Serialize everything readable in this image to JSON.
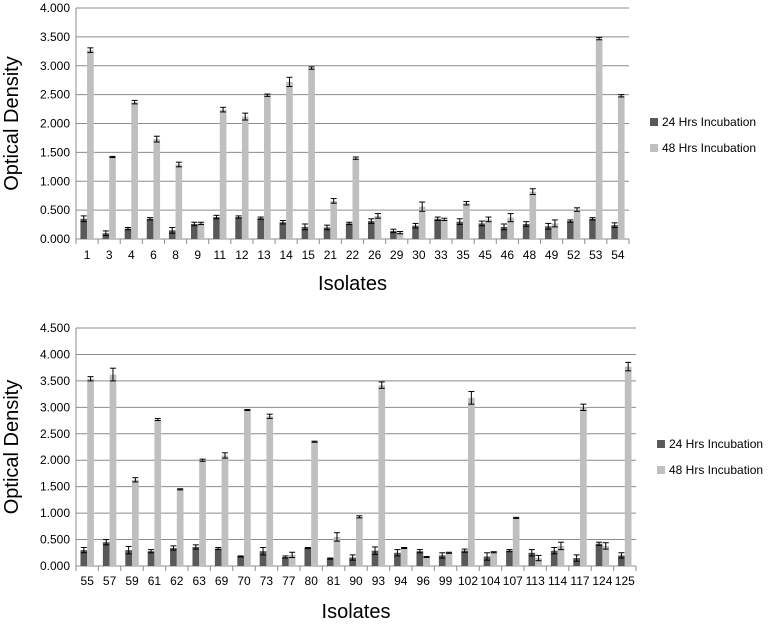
{
  "chart_data": [
    {
      "type": "bar",
      "xlabel": "Isolates",
      "ylabel": "Optical Density",
      "ylim": [
        0,
        4
      ],
      "ytick_step": 0.5,
      "grid": true,
      "legend_placement": "right",
      "categories": [
        "1",
        "3",
        "4",
        "6",
        "8",
        "9",
        "11",
        "12",
        "13",
        "14",
        "15",
        "21",
        "22",
        "26",
        "29",
        "30",
        "33",
        "35",
        "45",
        "46",
        "48",
        "49",
        "52",
        "53",
        "54"
      ],
      "series": [
        {
          "name": "24 Hrs Incubation",
          "color": "#595959",
          "values": [
            0.35,
            0.1,
            0.18,
            0.35,
            0.15,
            0.26,
            0.38,
            0.38,
            0.36,
            0.29,
            0.21,
            0.2,
            0.27,
            0.31,
            0.14,
            0.23,
            0.35,
            0.3,
            0.27,
            0.21,
            0.26,
            0.22,
            0.31,
            0.35,
            0.24
          ],
          "errors": [
            0.05,
            0.04,
            0.02,
            0.02,
            0.05,
            0.03,
            0.03,
            0.02,
            0.02,
            0.03,
            0.05,
            0.04,
            0.02,
            0.04,
            0.03,
            0.04,
            0.03,
            0.05,
            0.04,
            0.05,
            0.04,
            0.05,
            0.02,
            0.02,
            0.04
          ]
        },
        {
          "name": "48 Hrs Incubation",
          "color": "#bfbfbf",
          "values": [
            3.27,
            1.42,
            2.37,
            1.73,
            1.29,
            0.27,
            2.24,
            2.12,
            2.49,
            2.72,
            2.96,
            0.66,
            1.4,
            0.4,
            0.11,
            0.56,
            0.34,
            0.62,
            0.34,
            0.37,
            0.82,
            0.27,
            0.51,
            3.47,
            2.48
          ],
          "errors": [
            0.04,
            0.01,
            0.03,
            0.05,
            0.04,
            0.02,
            0.04,
            0.06,
            0.02,
            0.08,
            0.02,
            0.04,
            0.02,
            0.04,
            0.02,
            0.08,
            0.02,
            0.03,
            0.04,
            0.07,
            0.05,
            0.06,
            0.03,
            0.02,
            0.02
          ]
        }
      ]
    },
    {
      "type": "bar",
      "xlabel": "Isolates",
      "ylabel": "Optical Density",
      "ylim": [
        0,
        4.5
      ],
      "ytick_step": 0.5,
      "grid": true,
      "legend_placement": "right",
      "categories": [
        "55",
        "57",
        "59",
        "61",
        "62",
        "63",
        "69",
        "70",
        "73",
        "77",
        "80",
        "81",
        "90",
        "93",
        "94",
        "96",
        "99",
        "102",
        "104",
        "107",
        "113",
        "114",
        "117",
        "124",
        "125"
      ],
      "series": [
        {
          "name": "24 Hrs Incubation",
          "color": "#595959",
          "values": [
            0.3,
            0.45,
            0.3,
            0.28,
            0.34,
            0.36,
            0.33,
            0.18,
            0.28,
            0.17,
            0.34,
            0.14,
            0.16,
            0.29,
            0.25,
            0.28,
            0.2,
            0.29,
            0.18,
            0.29,
            0.25,
            0.29,
            0.15,
            0.42,
            0.2
          ],
          "errors": [
            0.05,
            0.05,
            0.07,
            0.03,
            0.04,
            0.04,
            0.02,
            0.01,
            0.07,
            0.02,
            0.01,
            0.01,
            0.05,
            0.07,
            0.06,
            0.03,
            0.05,
            0.03,
            0.07,
            0.02,
            0.06,
            0.06,
            0.06,
            0.03,
            0.05
          ]
        },
        {
          "name": "48 Hrs Incubation",
          "color": "#bfbfbf",
          "values": [
            3.54,
            3.62,
            1.63,
            2.77,
            1.45,
            2.0,
            2.09,
            2.95,
            2.83,
            0.21,
            2.35,
            0.55,
            0.93,
            3.42,
            0.34,
            0.17,
            0.25,
            3.18,
            0.26,
            0.91,
            0.15,
            0.38,
            3.0,
            0.38,
            3.77
          ],
          "errors": [
            0.04,
            0.12,
            0.04,
            0.02,
            0.01,
            0.02,
            0.05,
            0.01,
            0.04,
            0.05,
            0.01,
            0.08,
            0.02,
            0.06,
            0.01,
            0.01,
            0.01,
            0.12,
            0.01,
            0.01,
            0.05,
            0.07,
            0.06,
            0.06,
            0.08
          ]
        }
      ]
    }
  ]
}
